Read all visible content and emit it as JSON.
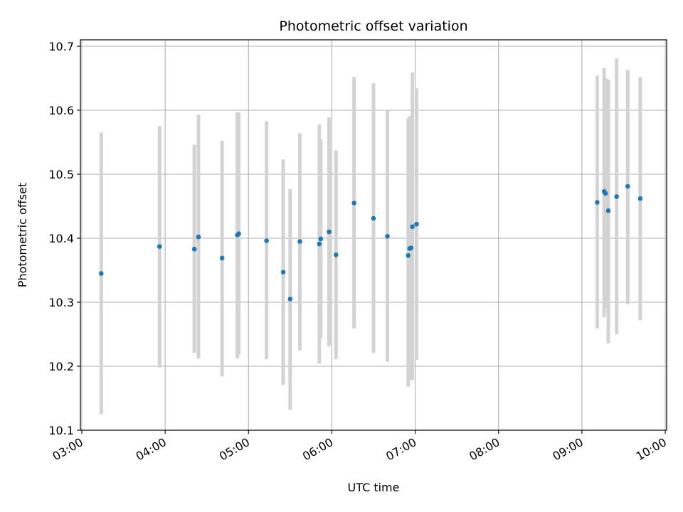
{
  "chart_data": {
    "type": "scatter",
    "title": "Photometric offset variation",
    "xlabel": "UTC time",
    "ylabel": "Photometric offset",
    "xlim": [
      "02:59",
      "10:01"
    ],
    "ylim": [
      10.1,
      10.71
    ],
    "x_ticks": [
      "03:00",
      "04:00",
      "05:00",
      "06:00",
      "07:00",
      "08:00",
      "09:00",
      "10:00"
    ],
    "y_ticks": [
      10.1,
      10.2,
      10.3,
      10.4,
      10.5,
      10.6,
      10.7
    ],
    "grid": true,
    "point_color": "#1f77b4",
    "errorbar_color": "#d3d3d3",
    "points": [
      {
        "t": "03:14",
        "y": 10.345,
        "lo": 10.125,
        "hi": 10.565
      },
      {
        "t": "03:56",
        "y": 10.387,
        "lo": 10.198,
        "hi": 10.575
      },
      {
        "t": "04:21",
        "y": 10.383,
        "lo": 10.221,
        "hi": 10.546
      },
      {
        "t": "04:24",
        "y": 10.402,
        "lo": 10.212,
        "hi": 10.593
      },
      {
        "t": "04:41",
        "y": 10.369,
        "lo": 10.184,
        "hi": 10.552
      },
      {
        "t": "04:52",
        "y": 10.405,
        "lo": 10.212,
        "hi": 10.597
      },
      {
        "t": "04:53",
        "y": 10.407,
        "lo": 10.218,
        "hi": 10.596
      },
      {
        "t": "05:13",
        "y": 10.396,
        "lo": 10.211,
        "hi": 10.583
      },
      {
        "t": "05:25",
        "y": 10.347,
        "lo": 10.171,
        "hi": 10.523
      },
      {
        "t": "05:30",
        "y": 10.305,
        "lo": 10.132,
        "hi": 10.477
      },
      {
        "t": "05:37",
        "y": 10.395,
        "lo": 10.225,
        "hi": 10.564
      },
      {
        "t": "05:51",
        "y": 10.391,
        "lo": 10.204,
        "hi": 10.578
      },
      {
        "t": "05:52",
        "y": 10.399,
        "lo": 10.244,
        "hi": 10.555
      },
      {
        "t": "05:58",
        "y": 10.41,
        "lo": 10.231,
        "hi": 10.589
      },
      {
        "t": "06:03",
        "y": 10.374,
        "lo": 10.211,
        "hi": 10.537
      },
      {
        "t": "06:16",
        "y": 10.455,
        "lo": 10.259,
        "hi": 10.652
      },
      {
        "t": "06:30",
        "y": 10.431,
        "lo": 10.221,
        "hi": 10.642
      },
      {
        "t": "06:40",
        "y": 10.403,
        "lo": 10.207,
        "hi": 10.599
      },
      {
        "t": "06:55",
        "y": 10.373,
        "lo": 10.168,
        "hi": 10.587
      },
      {
        "t": "06:56",
        "y": 10.384,
        "lo": 10.178,
        "hi": 10.59
      },
      {
        "t": "06:57",
        "y": 10.385,
        "lo": 10.179,
        "hi": 10.591
      },
      {
        "t": "06:58",
        "y": 10.418,
        "lo": 10.178,
        "hi": 10.659
      },
      {
        "t": "07:01",
        "y": 10.422,
        "lo": 10.21,
        "hi": 10.634
      },
      {
        "t": "09:11",
        "y": 10.456,
        "lo": 10.259,
        "hi": 10.654
      },
      {
        "t": "09:16",
        "y": 10.473,
        "lo": 10.277,
        "hi": 10.666
      },
      {
        "t": "09:17",
        "y": 10.47,
        "lo": 10.29,
        "hi": 10.65
      },
      {
        "t": "09:19",
        "y": 10.443,
        "lo": 10.236,
        "hi": 10.648
      },
      {
        "t": "09:25",
        "y": 10.465,
        "lo": 10.25,
        "hi": 10.681
      },
      {
        "t": "09:33",
        "y": 10.481,
        "lo": 10.297,
        "hi": 10.663
      },
      {
        "t": "09:42",
        "y": 10.462,
        "lo": 10.272,
        "hi": 10.652
      }
    ]
  }
}
